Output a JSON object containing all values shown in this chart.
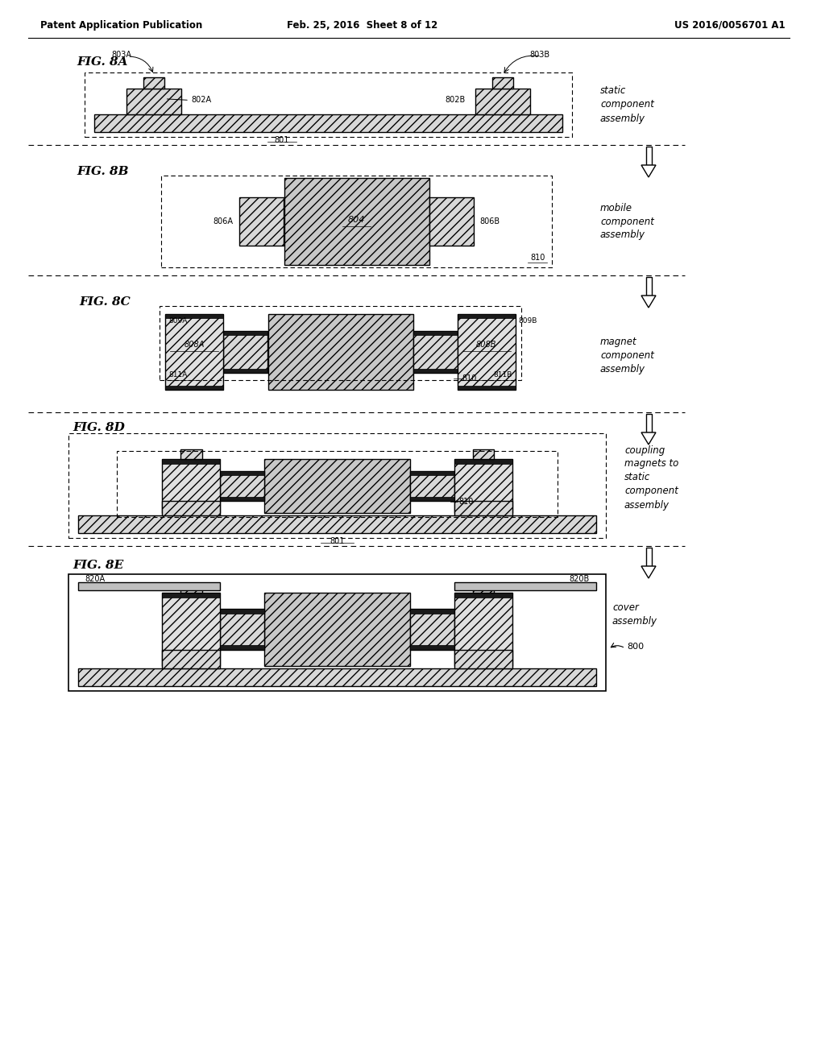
{
  "bg_color": "#ffffff",
  "header_left": "Patent Application Publication",
  "header_mid": "Feb. 25, 2016  Sheet 8 of 12",
  "header_right": "US 2016/0056701 A1",
  "fig8a_label": "FIG. 8A",
  "fig8a_desc": "static\ncomponent\nassembly",
  "fig8b_label": "FIG. 8B",
  "fig8b_desc": "mobile\ncomponent\nassembly",
  "fig8c_label": "FIG. 8C",
  "fig8c_desc": "magnet\ncomponent\nassembly",
  "fig8d_label": "FIG. 8D",
  "fig8d_desc": "coupling\nmagnets to\nstatic\ncomponent\nassembly",
  "fig8e_label": "FIG. 8E",
  "fig8e_desc": "cover\nassembly",
  "fc_light": "#d8d8d8",
  "fc_mid": "#c8c8c8",
  "fc_outer": "#e0e0e0",
  "fc_black": "#1a1a1a",
  "fc_cover": "#c0c0c0",
  "fc_bg": "#f0f0f0"
}
